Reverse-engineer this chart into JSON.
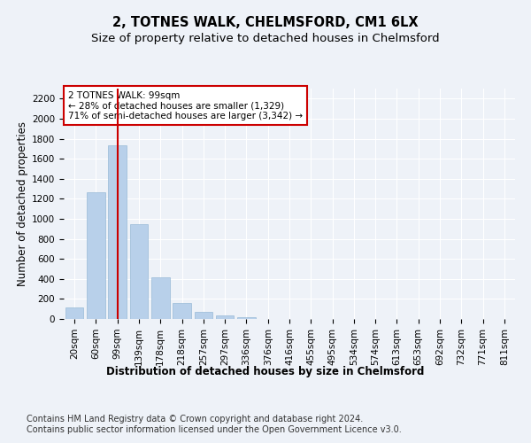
{
  "title1": "2, TOTNES WALK, CHELMSFORD, CM1 6LX",
  "title2": "Size of property relative to detached houses in Chelmsford",
  "xlabel": "Distribution of detached houses by size in Chelmsford",
  "ylabel": "Number of detached properties",
  "categories": [
    "20sqm",
    "60sqm",
    "99sqm",
    "139sqm",
    "178sqm",
    "218sqm",
    "257sqm",
    "297sqm",
    "336sqm",
    "376sqm",
    "416sqm",
    "455sqm",
    "495sqm",
    "534sqm",
    "574sqm",
    "613sqm",
    "653sqm",
    "692sqm",
    "732sqm",
    "771sqm",
    "811sqm"
  ],
  "values": [
    113,
    1268,
    1735,
    950,
    415,
    155,
    70,
    38,
    22,
    0,
    0,
    0,
    0,
    0,
    0,
    0,
    0,
    0,
    0,
    0,
    0
  ],
  "bar_color": "#b8d0ea",
  "bar_edge_color": "#b8d0ea",
  "vline_x": 2,
  "vline_color": "#cc0000",
  "annotation_text": "2 TOTNES WALK: 99sqm\n← 28% of detached houses are smaller (1,329)\n71% of semi-detached houses are larger (3,342) →",
  "annotation_box_color": "#ffffff",
  "annotation_box_edge": "#cc0000",
  "ylim": [
    0,
    2300
  ],
  "yticks": [
    0,
    200,
    400,
    600,
    800,
    1000,
    1200,
    1400,
    1600,
    1800,
    2000,
    2200
  ],
  "footer1": "Contains HM Land Registry data © Crown copyright and database right 2024.",
  "footer2": "Contains public sector information licensed under the Open Government Licence v3.0.",
  "bg_color": "#eef2f8",
  "plot_bg_color": "#eef2f8",
  "grid_color": "#ffffff",
  "title1_fontsize": 10.5,
  "title2_fontsize": 9.5,
  "xlabel_fontsize": 8.5,
  "ylabel_fontsize": 8.5,
  "tick_fontsize": 7.5,
  "footer_fontsize": 7
}
